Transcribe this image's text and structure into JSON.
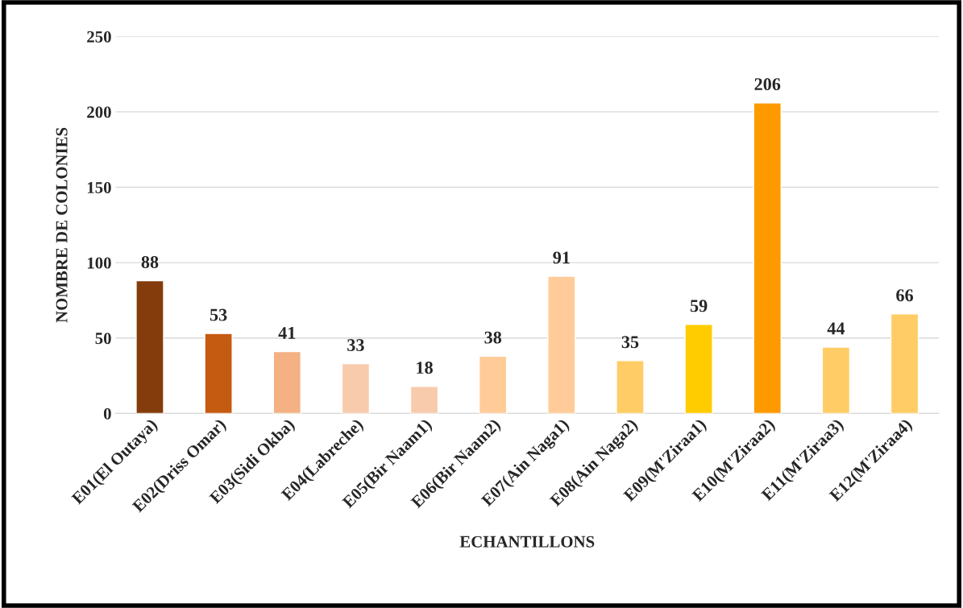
{
  "chart_data": {
    "type": "bar",
    "xlabel": "ECHANTILLONS",
    "ylabel": "NOMBRE DE COLONIES",
    "categories": [
      "E01(El Outaya)",
      "E02(Driss Omar)",
      "E03(Sidi Okba)",
      "E04(Labreche)",
      "E05(Bir Naam1)",
      "E06(Bir Naam2)",
      "E07(Ain Naga1)",
      "E08(Ain Naga2)",
      "E09(M'Ziraa1)",
      "E10(M'Ziraa2)",
      "E11(M'Ziraa3)",
      "E12(M'Ziraa4)"
    ],
    "values": [
      88,
      53,
      41,
      33,
      18,
      38,
      91,
      35,
      59,
      206,
      44,
      66
    ],
    "colors": [
      "#843c0c",
      "#c55a11",
      "#f4b183",
      "#f8cbad",
      "#f8cbad",
      "#ffcc99",
      "#ffcc99",
      "#ffcc66",
      "#ffcc00",
      "#ff9900",
      "#ffcc66",
      "#ffcc66"
    ],
    "ylim": [
      0,
      250
    ],
    "yticks": [
      0,
      50,
      100,
      150,
      200,
      250
    ],
    "grid": "y",
    "data_labels": true
  }
}
